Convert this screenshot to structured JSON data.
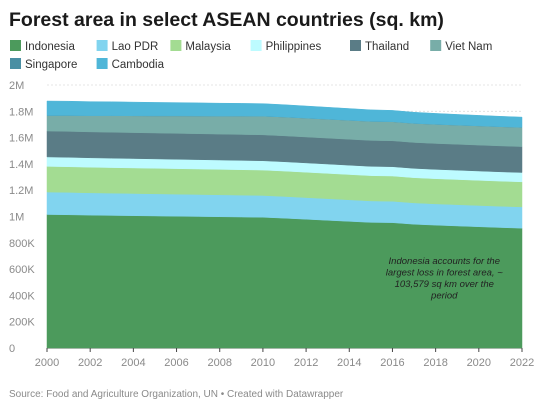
{
  "chart_data": {
    "type": "area",
    "stacked": true,
    "title": "Forest area in select ASEAN countries (sq. km)",
    "source": "Source: Food and Agriculture Organization, UN • Created with Datawrapper",
    "x": [
      2000,
      2001,
      2002,
      2003,
      2004,
      2005,
      2006,
      2007,
      2008,
      2009,
      2010,
      2011,
      2012,
      2013,
      2014,
      2015,
      2016,
      2017,
      2018,
      2019,
      2020,
      2021,
      2022
    ],
    "xlim": [
      2000,
      2022
    ],
    "xticks": [
      "2000",
      "2002",
      "2004",
      "2006",
      "2008",
      "2010",
      "2012",
      "2014",
      "2016",
      "2018",
      "2020",
      "2022"
    ],
    "ylim": [
      0,
      2000000
    ],
    "yticks": [
      {
        "value": 0,
        "label": "0"
      },
      {
        "value": 200000,
        "label": "200K"
      },
      {
        "value": 400000,
        "label": "400K"
      },
      {
        "value": 600000,
        "label": "600K"
      },
      {
        "value": 800000,
        "label": "800K"
      },
      {
        "value": 1000000,
        "label": "1M"
      },
      {
        "value": 1200000,
        "label": "1.2M"
      },
      {
        "value": 1400000,
        "label": "1.4M"
      },
      {
        "value": 1600000,
        "label": "1.6M"
      },
      {
        "value": 1800000,
        "label": "1.8M"
      },
      {
        "value": 2000000,
        "label": "2M"
      }
    ],
    "grid": true,
    "legend_position": "top-left",
    "series": [
      {
        "name": "Indonesia",
        "color": "#4c9a5c",
        "values": [
          1015000,
          1013000,
          1010000,
          1008000,
          1006000,
          1004000,
          1002000,
          1000000,
          998000,
          996000,
          994000,
          987000,
          979000,
          971000,
          963000,
          955000,
          953000,
          941000,
          934000,
          928000,
          922000,
          916000,
          911000
        ]
      },
      {
        "name": "Lao PDR",
        "color": "#81d4ef",
        "values": [
          171000,
          170500,
          170000,
          169500,
          169000,
          168500,
          168000,
          167500,
          167000,
          166500,
          166000,
          165500,
          165000,
          164500,
          164000,
          163500,
          163000,
          162500,
          162000,
          162000,
          162000,
          162000,
          162000
        ]
      },
      {
        "name": "Malaysia",
        "color": "#a3dc92",
        "values": [
          195000,
          194800,
          194600,
          194400,
          194200,
          194000,
          193800,
          193600,
          193400,
          193200,
          193000,
          192800,
          192600,
          192400,
          192200,
          192000,
          191800,
          191600,
          191400,
          191200,
          191000,
          190800,
          190600
        ]
      },
      {
        "name": "Philippines",
        "color": "#bdfbff",
        "values": [
          72000,
          71900,
          71800,
          71700,
          71600,
          71500,
          71400,
          71300,
          71200,
          71100,
          71000,
          71000,
          71000,
          71000,
          71000,
          71000,
          71000,
          71000,
          71000,
          71000,
          71000,
          71000,
          71000
        ]
      },
      {
        "name": "Thailand",
        "color": "#5a7c86",
        "values": [
          197000,
          197000,
          197000,
          197000,
          197000,
          197000,
          197000,
          197000,
          197000,
          197000,
          197000,
          197000,
          197000,
          197000,
          197000,
          197000,
          197000,
          197000,
          197000,
          197000,
          197000,
          197000,
          197000
        ]
      },
      {
        "name": "Viet Nam",
        "color": "#78ada8",
        "values": [
          118000,
          121000,
          123000,
          126000,
          128000,
          130000,
          133000,
          135000,
          137000,
          140000,
          142000,
          143000,
          143500,
          144000,
          144500,
          145000,
          145000,
          145000,
          145500,
          145500,
          146000,
          146000,
          146000
        ]
      },
      {
        "name": "Singapore",
        "color": "#4a8fa3",
        "values": [
          170,
          170,
          170,
          170,
          170,
          170,
          170,
          170,
          170,
          170,
          170,
          170,
          170,
          170,
          170,
          170,
          170,
          170,
          170,
          170,
          170,
          170,
          170
        ]
      },
      {
        "name": "Cambodia",
        "color": "#4fb6d8",
        "values": [
          110000,
          108500,
          107000,
          105500,
          104000,
          102500,
          101000,
          99500,
          98000,
          96500,
          95000,
          93500,
          92000,
          90500,
          89000,
          87500,
          86000,
          84500,
          83000,
          81500,
          80000,
          79000,
          78000
        ]
      }
    ],
    "annotation": [
      "Indonesia accounts for the",
      "largest loss in forest area, ~",
      "103,579 sq km over the",
      "period"
    ]
  }
}
